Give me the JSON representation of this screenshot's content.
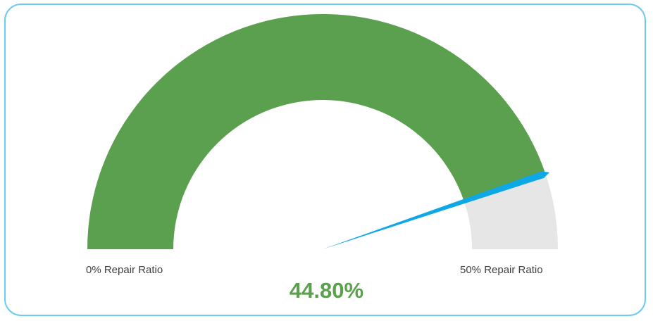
{
  "chart_data": {
    "type": "gauge",
    "min": 0,
    "max": 0.5,
    "value": 0.448,
    "value_label": "44.80%",
    "min_label": "0% Repair Ratio",
    "max_label": "50% Repair Ratio",
    "colors": {
      "fill": "#5ba04e",
      "track": "#e6e6e6",
      "needle": "#0ea8e6",
      "border": "#6ccbf0",
      "value_text": "#5ba04e"
    }
  }
}
